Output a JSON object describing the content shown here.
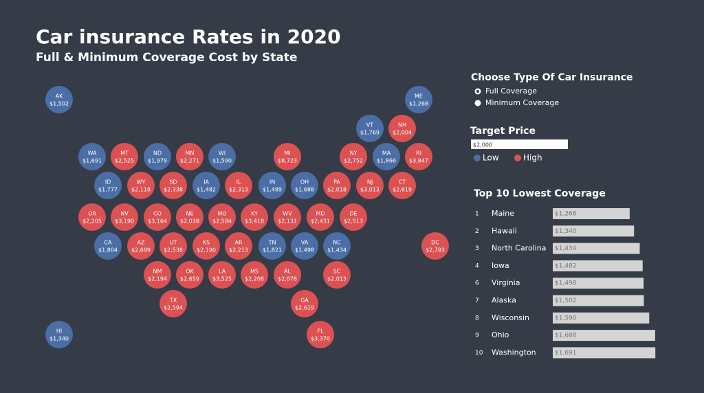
{
  "chart_data": [
    {
      "type": "tilemap",
      "title": "Car insurance Rates in 2020",
      "subtitle": "Full & Minimum Coverage Cost by State",
      "categories": [
        "AK",
        "ME",
        "VT",
        "NH",
        "WA",
        "MT",
        "ND",
        "MN",
        "WI",
        "MI",
        "NY",
        "MA",
        "RI",
        "ID",
        "WY",
        "SD",
        "IA",
        "IL",
        "IN",
        "OH",
        "PA",
        "NJ",
        "CT",
        "OR",
        "NV",
        "CO",
        "NE",
        "MO",
        "KY",
        "WV",
        "MD",
        "DE",
        "CA",
        "AZ",
        "UT",
        "KS",
        "AR",
        "TN",
        "VA",
        "NC",
        "DC",
        "NM",
        "OK",
        "LA",
        "MS",
        "AL",
        "SC",
        "TX",
        "GA",
        "HI",
        "FL"
      ],
      "values": [
        1502,
        1268,
        1769,
        2004,
        1691,
        2525,
        1979,
        2271,
        1590,
        8723,
        2752,
        1866,
        3847,
        1777,
        2118,
        2338,
        1482,
        2313,
        1489,
        1688,
        2018,
        3013,
        2619,
        2205,
        3190,
        3164,
        2038,
        2584,
        3418,
        2131,
        2431,
        2513,
        1804,
        2699,
        2538,
        2190,
        2213,
        1821,
        1498,
        1434,
        2793,
        2194,
        2659,
        3525,
        2208,
        2078,
        2013,
        2594,
        2619,
        1340,
        3370
      ],
      "value_labels": [
        "$1,502",
        "$1,268",
        "$1,769",
        "$2,004",
        "$1,691",
        "$2,525",
        "$1,979",
        "$2,271",
        "$1,590",
        "$8,723",
        "$2,752",
        "$1,866",
        "$3,847",
        "$1,777",
        "$2,118",
        "$2,338",
        "$1,482",
        "$2,313",
        "$1,489",
        "$1,688",
        "$2,018",
        "$3,013",
        "$2,619",
        "$2,205",
        "$3,190",
        "$3,164",
        "$2,038",
        "$2,584",
        "$3,418",
        "$2,131",
        "$2,431",
        "$2,513",
        "$1,804",
        "$2,699",
        "$2,538",
        "$2,190",
        "$2,213",
        "$1,821",
        "$1,498",
        "$1,434",
        "$2,793",
        "$2,194",
        "$2,659",
        "$3,525",
        "$2,208",
        "$2,078",
        "$2,013",
        "$2,594",
        "$2,619",
        "$1,340",
        "$3,370"
      ],
      "controls_title": "Choose Type Of Car Insurance",
      "options": [
        "Full Coverage",
        "Minimum Coverage"
      ],
      "selected": 0,
      "target_title": "Target Price",
      "target_price": {
        "value": 2000,
        "label": "$2,000"
      },
      "legend": [
        {
          "name": "Low",
          "color": "#4a6ea5"
        },
        {
          "name": "High",
          "color": "#dc5152"
        }
      ]
    },
    {
      "type": "hbar",
      "title": "Top 10 Lowest Coverage",
      "ranks": [
        1,
        2,
        3,
        4,
        6,
        7,
        8,
        9,
        10
      ],
      "categories": [
        "Maine",
        "Hawaii",
        "North Carolina",
        "Iowa",
        "Virginia",
        "Alaska",
        "Wisconsin",
        "Ohio",
        "Washington"
      ],
      "values": [
        1268,
        1340,
        1434,
        1482,
        1498,
        1502,
        1590,
        1688,
        1691
      ],
      "value_labels": [
        "$1,268",
        "$1,340",
        "$1,434",
        "$1,482",
        "$1,498",
        "$1,502",
        "$1,590",
        "$1,688",
        "$1,691"
      ],
      "color": "#d4d4d4",
      "xlim": [
        0,
        1700
      ]
    }
  ]
}
